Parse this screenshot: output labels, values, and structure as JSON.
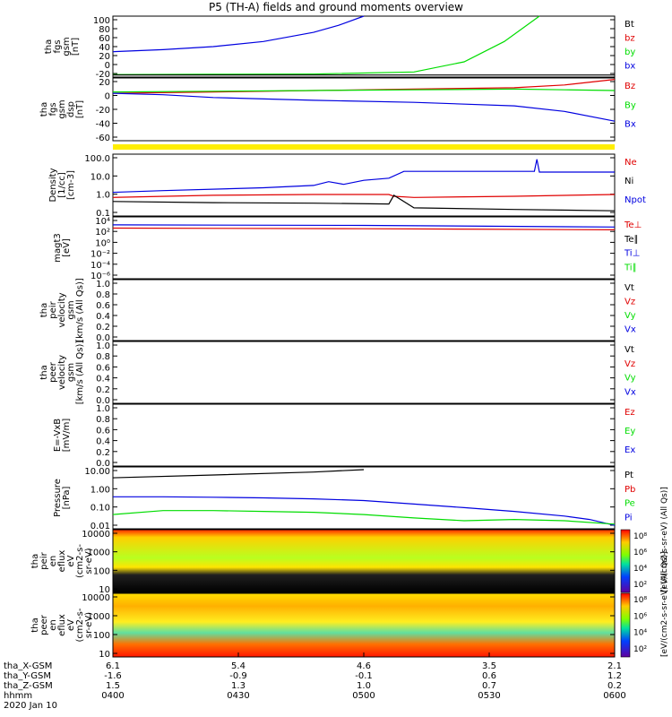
{
  "title": "P5 (TH-A) fields and ground moments overview",
  "colors": {
    "black": "#000000",
    "red": "#e00000",
    "green": "#00dd00",
    "blue": "#0000e0",
    "yellow": "#ffee00"
  },
  "chart_data": [
    {
      "type": "line",
      "ylabel": [
        "tha",
        "fgs",
        "gsm",
        "[nT]"
      ],
      "yticks": [
        "100",
        "80",
        "60",
        "40",
        "20",
        "0",
        "-20"
      ],
      "ylim": [
        -20,
        100
      ],
      "legend": [
        {
          "label": "Bt",
          "color": "black"
        },
        {
          "label": "bz",
          "color": "red"
        },
        {
          "label": "by",
          "color": "green"
        },
        {
          "label": "bx",
          "color": "blue"
        }
      ],
      "series": [
        {
          "name": "Bt",
          "color": "blue",
          "x": [
            0,
            0.1,
            0.2,
            0.3,
            0.4,
            0.45,
            0.5
          ],
          "y": [
            30,
            34,
            40,
            50,
            68,
            82,
            100
          ]
        },
        {
          "name": "by",
          "color": "green",
          "x": [
            0,
            0.2,
            0.4,
            0.6,
            0.7,
            0.78,
            0.85
          ],
          "y": [
            -15,
            -14.5,
            -14,
            -10,
            10,
            50,
            100
          ]
        },
        {
          "name": "bz",
          "color": "black",
          "x": [
            0,
            0.5,
            1.0
          ],
          "y": [
            -16,
            -16,
            -16
          ]
        }
      ]
    },
    {
      "type": "line",
      "ylabel": [
        "tha",
        "fgs",
        "gsm",
        "dsp",
        "[nT]"
      ],
      "yticks": [
        "20",
        "0",
        "-20",
        "-40",
        "-60"
      ],
      "ylim": [
        -70,
        20
      ],
      "legend": [
        {
          "label": "Bz",
          "color": "red"
        },
        {
          "label": "By",
          "color": "green"
        },
        {
          "label": "Bx",
          "color": "blue"
        }
      ],
      "series": [
        {
          "name": "Bz",
          "color": "red",
          "x": [
            0,
            0.2,
            0.4,
            0.6,
            0.8,
            0.9,
            1.0
          ],
          "y": [
            -2,
            0,
            2,
            4,
            6,
            10,
            18
          ]
        },
        {
          "name": "By",
          "color": "green",
          "x": [
            0,
            0.2,
            0.4,
            0.6,
            0.8,
            0.9,
            1.0
          ],
          "y": [
            0,
            1,
            2,
            3,
            4,
            3,
            2
          ]
        },
        {
          "name": "Bx",
          "color": "blue",
          "x": [
            0,
            0.1,
            0.2,
            0.4,
            0.6,
            0.8,
            0.9,
            1.0
          ],
          "y": [
            -2,
            -4,
            -8,
            -12,
            -15,
            -20,
            -28,
            -42
          ]
        }
      ]
    },
    {
      "type": "line",
      "ylabel": [
        "Density",
        "[1/cc]",
        "[cm-3]"
      ],
      "yticks": [
        "100.0",
        "10.0",
        "1.0",
        "0.1"
      ],
      "yscale": "log",
      "ylim": [
        0.05,
        200
      ],
      "legend": [
        {
          "label": "Ne",
          "color": "red"
        },
        {
          "label": "Ni",
          "color": "black"
        },
        {
          "label": "Npot",
          "color": "blue"
        }
      ],
      "series": [
        {
          "name": "Npot",
          "color": "blue",
          "x": [
            0,
            0.1,
            0.3,
            0.4,
            0.43,
            0.46,
            0.5,
            0.55,
            0.58,
            0.7,
            0.84,
            0.845,
            0.85,
            1.0
          ],
          "y": [
            1.2,
            1.5,
            2.2,
            3,
            5,
            3.5,
            6,
            8,
            20,
            20,
            20,
            100,
            18,
            18
          ]
        },
        {
          "name": "Ne",
          "color": "red",
          "x": [
            0,
            0.2,
            0.4,
            0.55,
            0.56,
            0.6,
            0.8,
            1.0
          ],
          "y": [
            0.6,
            0.8,
            0.9,
            0.9,
            0.7,
            0.6,
            0.7,
            0.9
          ]
        },
        {
          "name": "Ni",
          "color": "black",
          "x": [
            0,
            0.2,
            0.4,
            0.55,
            0.56,
            0.6,
            0.8,
            1.0
          ],
          "y": [
            0.35,
            0.3,
            0.28,
            0.25,
            0.8,
            0.15,
            0.12,
            0.1
          ]
        }
      ]
    },
    {
      "type": "line",
      "ylabel": [
        "magt3",
        "[eV]"
      ],
      "yticks": [
        "10⁴",
        "10²",
        "10⁰",
        "10⁻²",
        "10⁻⁴",
        "10⁻⁶"
      ],
      "yscale": "log",
      "legend": [
        {
          "label": "Te⊥",
          "color": "red"
        },
        {
          "label": "Te∥",
          "color": "black"
        },
        {
          "label": "Ti⊥",
          "color": "blue"
        },
        {
          "label": "Ti∥",
          "color": "green"
        }
      ],
      "series": [
        {
          "name": "Ti",
          "color": "blue",
          "x": [
            0,
            0.5,
            1.0
          ],
          "y": [
            3.2,
            3.1,
            2.8
          ]
        },
        {
          "name": "Te",
          "color": "red",
          "x": [
            0,
            0.5,
            1.0
          ],
          "y": [
            2.6,
            2.5,
            2.3
          ]
        }
      ]
    },
    {
      "type": "line",
      "ylabel": [
        "tha",
        "peir",
        "velocity",
        "gsm",
        "[km/s (All Qs)]"
      ],
      "yticks": [
        "1.0",
        "0.8",
        "0.6",
        "0.4",
        "0.2",
        "0.0"
      ],
      "ylim": [
        0,
        1
      ],
      "legend": [
        {
          "label": "Vt",
          "color": "black"
        },
        {
          "label": "Vz",
          "color": "red"
        },
        {
          "label": "Vy",
          "color": "green"
        },
        {
          "label": "Vx",
          "color": "blue"
        }
      ]
    },
    {
      "type": "line",
      "ylabel": [
        "tha",
        "peer",
        "velocity",
        "gsm",
        "[km/s (All Qs)]"
      ],
      "yticks": [
        "1.0",
        "0.8",
        "0.6",
        "0.4",
        "0.2",
        "0.0"
      ],
      "ylim": [
        0,
        1
      ],
      "legend": [
        {
          "label": "Vt",
          "color": "black"
        },
        {
          "label": "Vz",
          "color": "red"
        },
        {
          "label": "Vy",
          "color": "green"
        },
        {
          "label": "Vx",
          "color": "blue"
        }
      ]
    },
    {
      "type": "line",
      "ylabel": [
        "E=-VxB",
        "[mV/m]"
      ],
      "yticks": [
        "1.0",
        "0.8",
        "0.6",
        "0.4",
        "0.2",
        "0.0"
      ],
      "ylim": [
        0,
        1
      ],
      "legend": [
        {
          "label": "Ez",
          "color": "red"
        },
        {
          "label": "Ey",
          "color": "green"
        },
        {
          "label": "Ex",
          "color": "blue"
        }
      ]
    },
    {
      "type": "line",
      "ylabel": [
        "Pressure",
        "[nPa]"
      ],
      "yticks": [
        "10.00",
        "1.00",
        "0.10",
        "0.01"
      ],
      "yscale": "log",
      "legend": [
        {
          "label": "Pt",
          "color": "black"
        },
        {
          "label": "Pb",
          "color": "red"
        },
        {
          "label": "Pe",
          "color": "green"
        },
        {
          "label": "Pi",
          "color": "blue"
        }
      ],
      "series": [
        {
          "name": "Pt",
          "color": "black",
          "x": [
            0,
            0.2,
            0.4,
            0.5
          ],
          "y": [
            6,
            9,
            14,
            20
          ]
        },
        {
          "name": "Pi",
          "color": "blue",
          "x": [
            0,
            0.1,
            0.2,
            0.3,
            0.4,
            0.5,
            0.6,
            0.7,
            0.8,
            0.9,
            0.95,
            1.0
          ],
          "y": [
            0.35,
            0.35,
            0.33,
            0.3,
            0.26,
            0.2,
            0.12,
            0.07,
            0.04,
            0.02,
            0.012,
            0.005
          ]
        },
        {
          "name": "Pe",
          "color": "green",
          "x": [
            0,
            0.1,
            0.2,
            0.3,
            0.4,
            0.5,
            0.6,
            0.7,
            0.8,
            0.9,
            1.0
          ],
          "y": [
            0.025,
            0.045,
            0.045,
            0.04,
            0.035,
            0.025,
            0.015,
            0.01,
            0.012,
            0.01,
            0.006
          ]
        }
      ]
    },
    {
      "type": "heatmap",
      "ylabel": [
        "tha",
        "peir",
        "en",
        "eflux",
        "eV",
        "(cm2-s-",
        "sr-eV)"
      ],
      "yticks": [
        "10000",
        "1000",
        "100",
        "10"
      ],
      "colorbar_ticks": [
        "10⁸",
        "10⁶",
        "10⁴",
        "10²"
      ],
      "colorbar_label": "[eV/(cm2-s-sr-eV) (All Qs)]"
    },
    {
      "type": "heatmap",
      "ylabel": [
        "tha",
        "peer",
        "en",
        "eflux",
        "eV",
        "(cm2-s-",
        "sr-eV)"
      ],
      "yticks": [
        "10000",
        "1000",
        "100",
        "10"
      ],
      "colorbar_ticks": [
        "10⁸",
        "10⁶",
        "10⁴",
        "10²"
      ],
      "colorbar_label": "[eV/(cm2-s-sr-eV) (All Qs)]"
    }
  ],
  "ephemeris": {
    "labels": [
      "tha_X-GSM",
      "tha_Y-GSM",
      "tha_Z-GSM",
      "hhmm",
      "2020 Jan 10"
    ],
    "columns": [
      [
        "6.1",
        "-1.6",
        "1.5",
        "0400"
      ],
      [
        "5.4",
        "-0.9",
        "1.3",
        "0430"
      ],
      [
        "4.6",
        "-0.1",
        "1.0",
        "0500"
      ],
      [
        "3.5",
        "0.6",
        "0.7",
        "0530"
      ],
      [
        "2.1",
        "1.2",
        "0.2",
        "0600"
      ]
    ]
  }
}
